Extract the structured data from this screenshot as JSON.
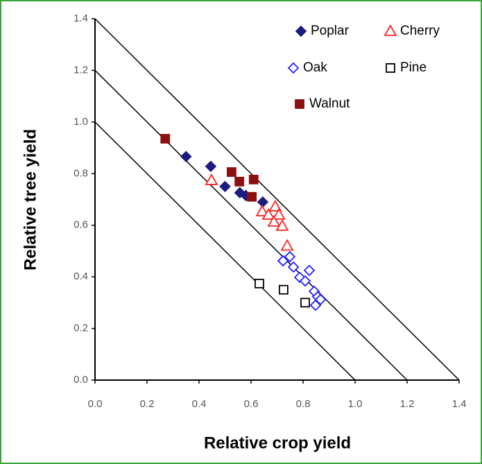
{
  "chart_data": {
    "type": "scatter",
    "xlabel": "Relative crop yield",
    "ylabel": "Relative tree yield",
    "xlim": [
      0,
      1.4
    ],
    "ylim": [
      0,
      1.4
    ],
    "xticks": [
      {
        "value": 0,
        "label": "0.0"
      },
      0.2,
      0.4,
      0.6,
      0.8,
      {
        "value": 1,
        "label": "1.0"
      },
      1.2,
      1.4
    ],
    "yticks": [
      {
        "value": 0,
        "label": "0.0"
      },
      0.2,
      0.4,
      0.6,
      0.8,
      {
        "value": 1,
        "label": "1.0"
      },
      1.2,
      1.4
    ],
    "reference_lines": [
      1,
      1.2,
      1.4
    ],
    "series": [
      {
        "name": "Poplar",
        "color": "#1c1c80",
        "marker": "diamond",
        "filled": true,
        "x": [
          0.35,
          0.445,
          0.5,
          0.557,
          0.58,
          0.645
        ],
        "values": [
          0.866,
          0.828,
          0.75,
          0.726,
          0.715,
          0.69
        ]
      },
      {
        "name": "Cherry",
        "color": "#ff2020",
        "marker": "triangle",
        "filled": false,
        "x": [
          0.448,
          0.643,
          0.667,
          0.693,
          0.707,
          0.688,
          0.72,
          0.739
        ],
        "values": [
          0.774,
          0.653,
          0.64,
          0.672,
          0.64,
          0.613,
          0.597,
          0.52
        ]
      },
      {
        "name": "Oak",
        "color": "#2020ff",
        "marker": "diamond",
        "filled": false,
        "x": [
          0.723,
          0.749,
          0.763,
          0.787,
          0.808,
          0.824,
          0.843,
          0.856,
          0.848,
          0.867
        ],
        "values": [
          0.462,
          0.478,
          0.438,
          0.398,
          0.384,
          0.425,
          0.344,
          0.323,
          0.29,
          0.312
        ]
      },
      {
        "name": "Pine",
        "color": "#000000",
        "marker": "square",
        "filled": false,
        "x": [
          0.632,
          0.725,
          0.808
        ],
        "values": [
          0.374,
          0.35,
          0.3
        ]
      },
      {
        "name": "Walnut",
        "color": "#8b1010",
        "marker": "square",
        "filled": true,
        "x": [
          0.27,
          0.525,
          0.555,
          0.61,
          0.603
        ],
        "values": [
          0.935,
          0.806,
          0.769,
          0.777,
          0.71
        ]
      }
    ]
  }
}
